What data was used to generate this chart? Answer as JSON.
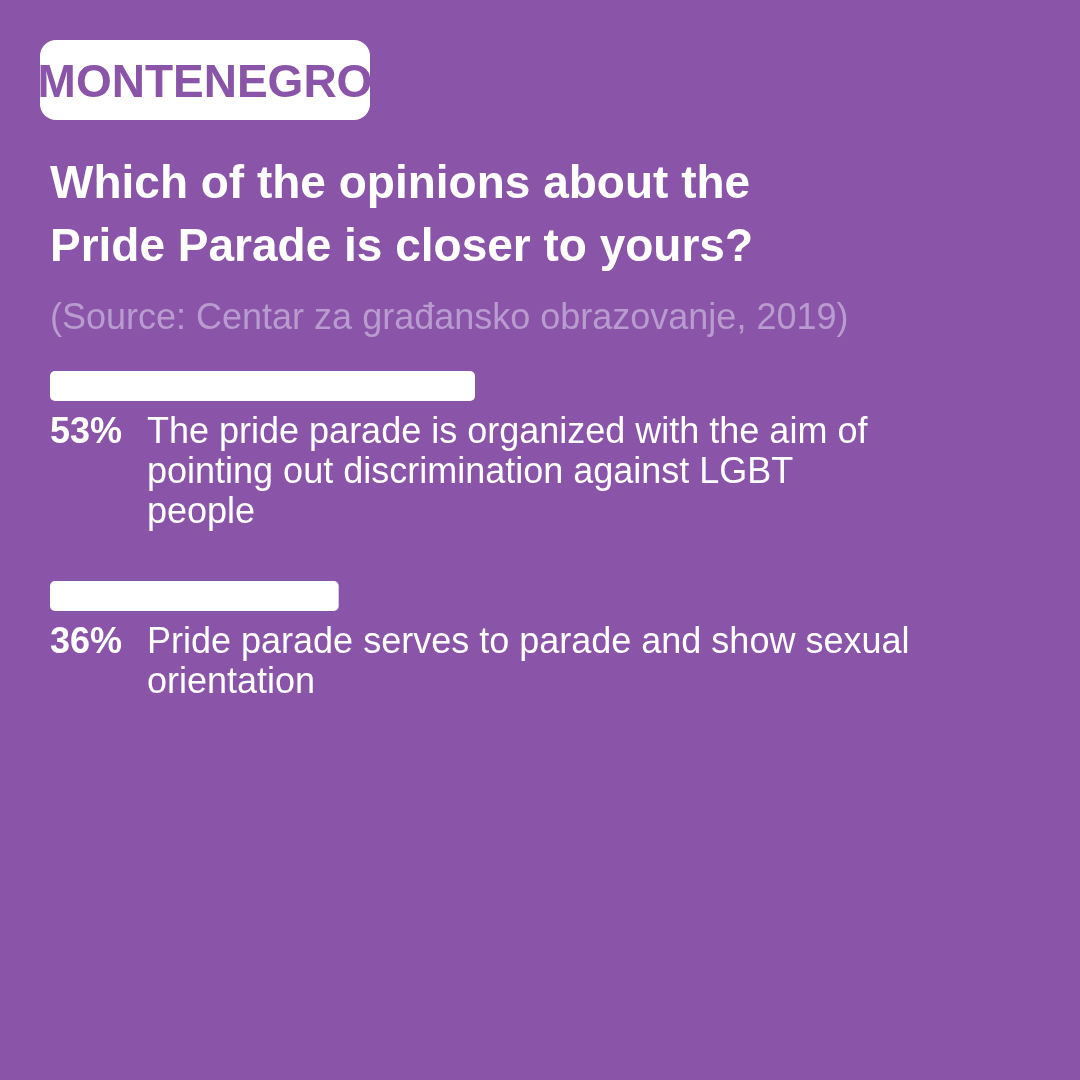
{
  "chart_data": {
    "type": "bar",
    "orientation": "horizontal",
    "subtitle": "MONTENEGRO",
    "title": "Which of the opinions about the Pride Parade is closer to yours?",
    "annotations": [
      "(Source: Centar za građansko obrazovanje, 2019)"
    ],
    "categories": [
      "The pride parade is organized with the aim of pointing out discrimination against LGBT people",
      "Pride parade serves to parade and show sexual orientation"
    ],
    "values": [
      53,
      36
    ],
    "color": "#ffffff",
    "data_labels": true,
    "value_labels": [
      "53%",
      "36%"
    ]
  }
}
